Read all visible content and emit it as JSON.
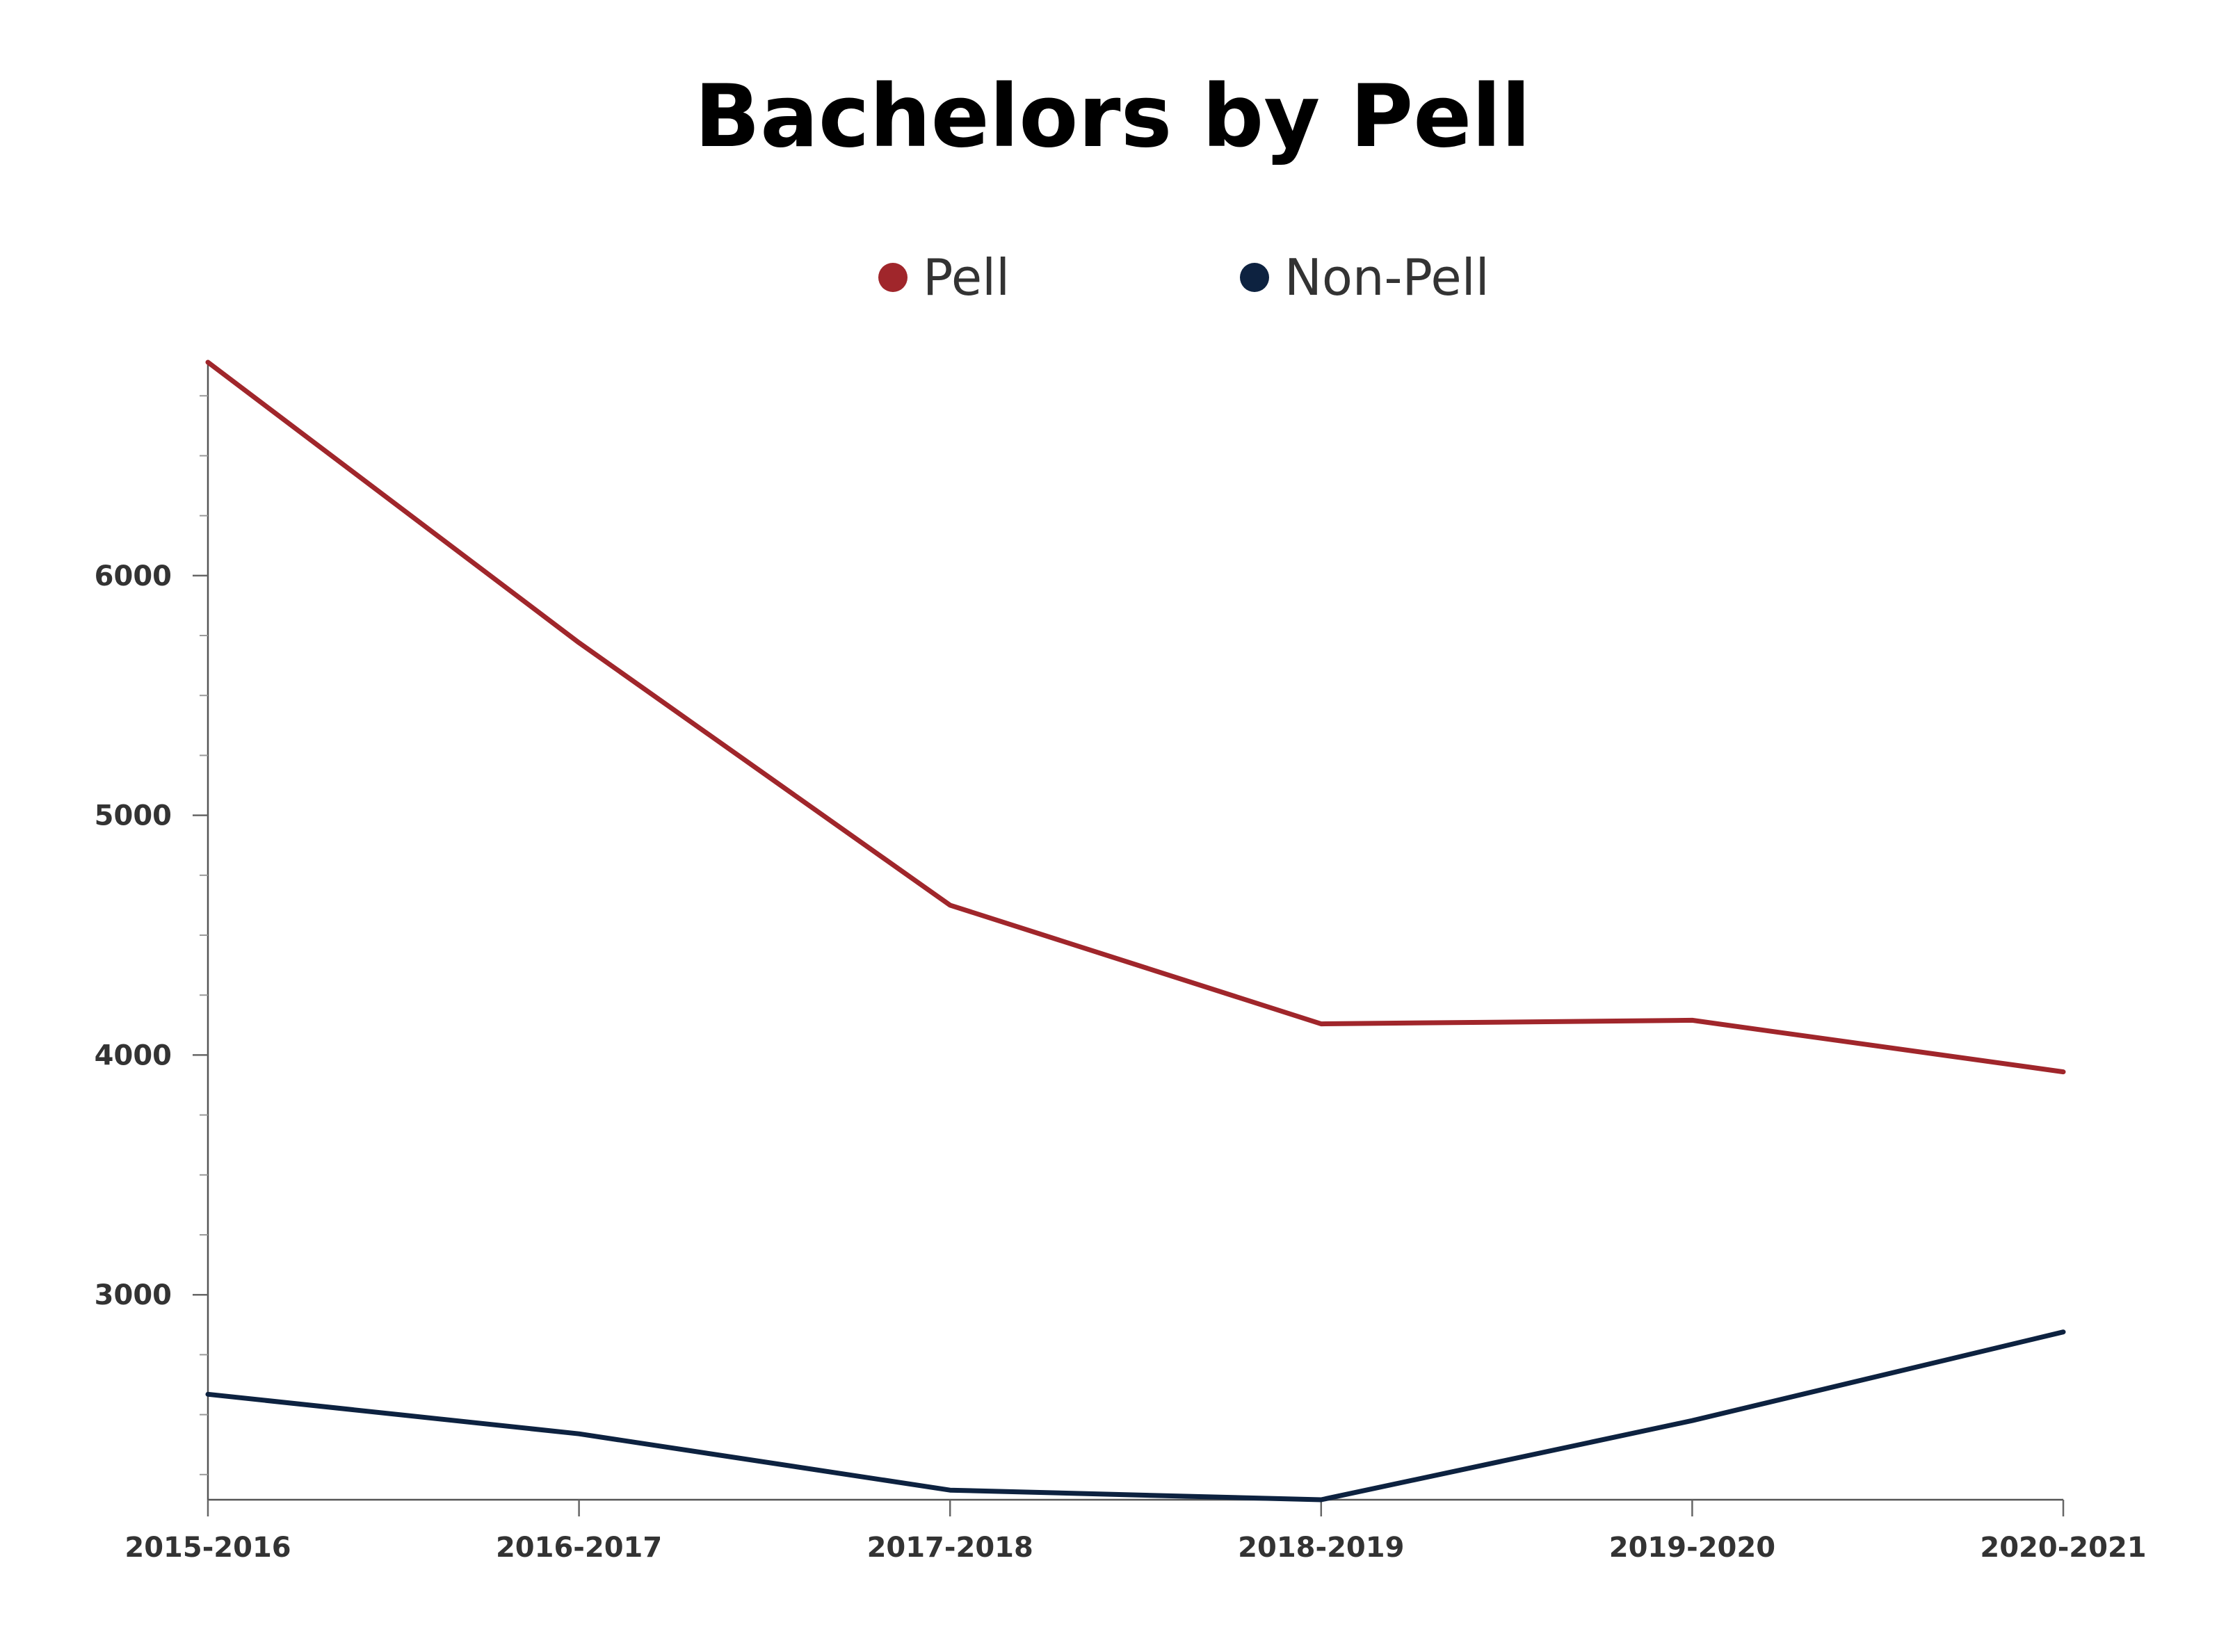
{
  "chart_data": {
    "type": "line",
    "title": "Bachelors by Pell",
    "xlabel": "",
    "ylabel": "",
    "categories": [
      "2015-2016",
      "2016-2017",
      "2017-2018",
      "2018-2019",
      "2019-2020",
      "2020-2021"
    ],
    "series": [
      {
        "name": "Pell",
        "color": "#A0262B",
        "values": [
          6890,
          5720,
          4625,
          4130,
          4145,
          3930
        ]
      },
      {
        "name": "Non-Pell",
        "color": "#0D2240",
        "values": [
          2585,
          2420,
          2185,
          2145,
          2475,
          2845
        ]
      }
    ],
    "ylim": [
      2145,
      6890
    ],
    "yticks": [
      3000,
      4000,
      5000,
      6000
    ],
    "minor_tick_step": 250,
    "grid": false,
    "legend_position": "top-center"
  }
}
